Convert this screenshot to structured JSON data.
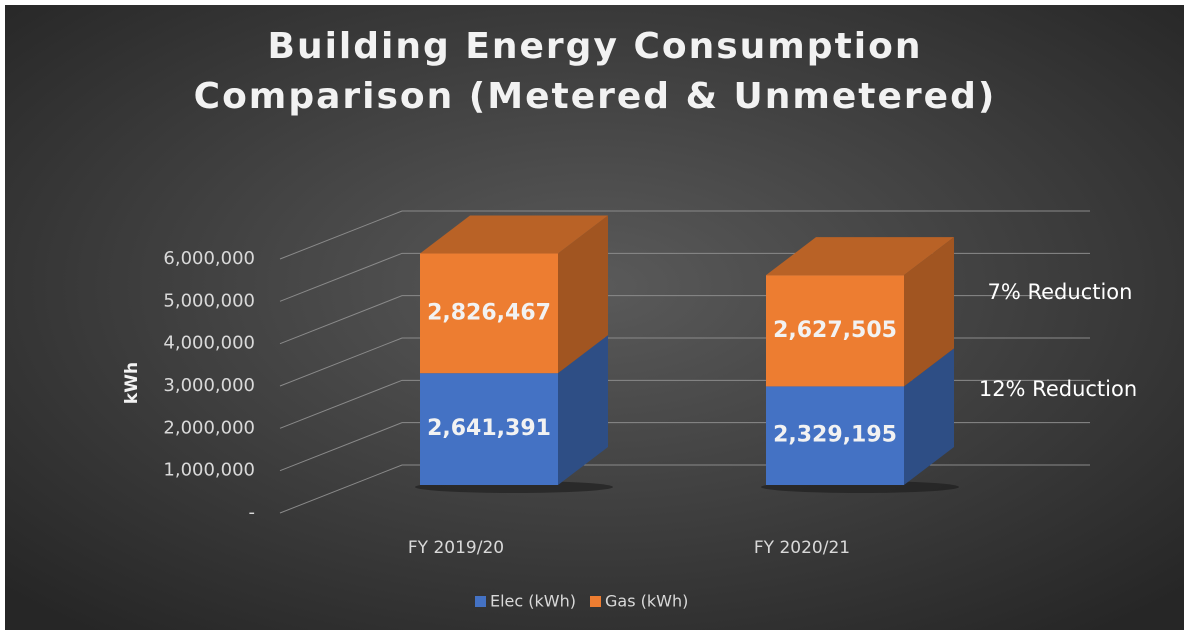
{
  "chart_data": {
    "type": "bar3d_stacked",
    "title": "Building Energy Consumption Comparison (Metered & Unmetered)",
    "ylabel": "kWh",
    "categories": [
      "FY 2019/20",
      "FY 2020/21"
    ],
    "series": [
      {
        "name": "Elec (kWh)",
        "color": "#4472c4",
        "values": [
          2641391,
          2329195
        ],
        "value_labels": [
          "2,641,391",
          "2,329,195"
        ]
      },
      {
        "name": "Gas (kWh)",
        "color": "#ed7d31",
        "values": [
          2826467,
          2627505
        ],
        "value_labels": [
          "2,826,467",
          "2,627,505"
        ]
      }
    ],
    "ylim": [
      0,
      6000000
    ],
    "yticks": [
      {
        "value": 0,
        "label": "-"
      },
      {
        "value": 1000000,
        "label": "1,000,000"
      },
      {
        "value": 2000000,
        "label": "2,000,000"
      },
      {
        "value": 3000000,
        "label": "3,000,000"
      },
      {
        "value": 4000000,
        "label": "4,000,000"
      },
      {
        "value": 5000000,
        "label": "5,000,000"
      },
      {
        "value": 6000000,
        "label": "6,000,000"
      }
    ],
    "grid": true,
    "legend": "bottom",
    "annotations": [
      "7% Reduction",
      "12% Reduction"
    ]
  }
}
